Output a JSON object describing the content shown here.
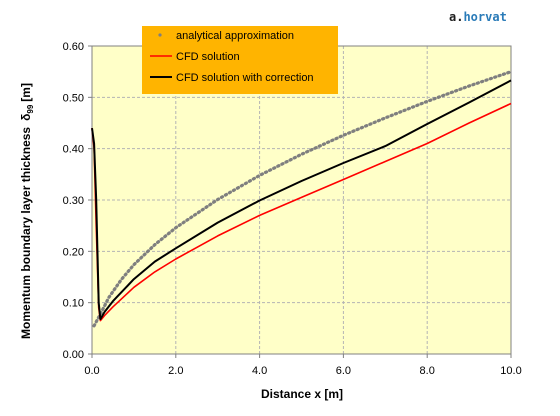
{
  "watermark": {
    "text_a": "a.",
    "text_b": "horvat",
    "color_a": "#1f1f1f",
    "color_b": "#2a7bb8"
  },
  "colors": {
    "plot_bg": "#ffffc8",
    "legend_bg": "#ffb400",
    "grid": "#b4b4b4",
    "analytical": "#7f7f7f",
    "cfd": "#ff0000",
    "cfd_corrected": "#000000"
  },
  "chart_data": {
    "type": "line",
    "xlabel": "Distance x [m]",
    "ylabel": "Momentum boundary layer thickness",
    "ylabel_symbol": "δ",
    "ylabel_subscript": "99",
    "ylabel_unit": "[m]",
    "xlim": [
      0,
      10
    ],
    "ylim": [
      0,
      0.6
    ],
    "xticks": [
      "0.0",
      "2.0",
      "4.0",
      "6.0",
      "8.0",
      "10.0"
    ],
    "yticks": [
      "0.00",
      "0.10",
      "0.20",
      "0.30",
      "0.40",
      "0.50",
      "0.60"
    ],
    "grid": true,
    "legend_position": "top-left",
    "series": [
      {
        "name": "analytical approximation",
        "style": "dotted",
        "x": [
          0.05,
          0.2,
          0.4,
          0.7,
          1.0,
          1.5,
          2.0,
          3.0,
          4.0,
          5.0,
          6.0,
          7.0,
          8.0,
          9.0,
          10.0
        ],
        "y": [
          0.055,
          0.078,
          0.11,
          0.145,
          0.174,
          0.213,
          0.246,
          0.301,
          0.348,
          0.389,
          0.426,
          0.46,
          0.492,
          0.522,
          0.55
        ]
      },
      {
        "name": "CFD solution",
        "style": "solid",
        "x": [
          0.0,
          0.05,
          0.1,
          0.16,
          0.2,
          0.3,
          0.5,
          1.0,
          1.5,
          2.0,
          3.0,
          4.0,
          5.0,
          6.0,
          7.0,
          8.0,
          9.0,
          10.0
        ],
        "y": [
          0.44,
          0.4,
          0.25,
          0.09,
          0.065,
          0.075,
          0.092,
          0.13,
          0.16,
          0.185,
          0.23,
          0.27,
          0.305,
          0.34,
          0.375,
          0.41,
          0.45,
          0.488
        ]
      },
      {
        "name": "CFD solution with correction",
        "style": "solid",
        "x": [
          0.0,
          0.05,
          0.1,
          0.16,
          0.2,
          0.3,
          0.5,
          1.0,
          1.5,
          2.0,
          3.0,
          4.0,
          5.0,
          6.0,
          7.0,
          8.0,
          9.0,
          10.0
        ],
        "y": [
          0.44,
          0.41,
          0.3,
          0.1,
          0.068,
          0.082,
          0.103,
          0.146,
          0.18,
          0.206,
          0.256,
          0.299,
          0.337,
          0.372,
          0.405,
          0.448,
          0.49,
          0.533
        ]
      }
    ]
  }
}
